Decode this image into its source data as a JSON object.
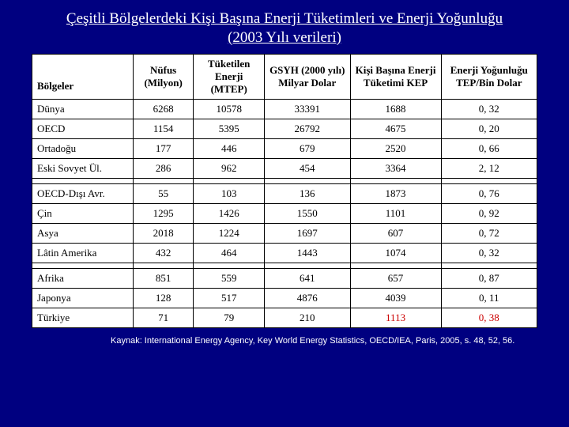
{
  "title_line1": "Çeşitli Bölgelerdeki Kişi Başına Enerji Tüketimleri ve Enerji Yoğunluğu",
  "title_line2": "(2003 Yılı verileri)",
  "header": {
    "regions": "Bölgeler",
    "col1": "Nüfus (Milyon)",
    "col2": "Tüketilen Enerji (MTEP)",
    "col3": "GSYH (2000 yılı) Milyar Dolar",
    "col4": "Kişi Başına Enerji Tüketimi KEP",
    "col5": "Enerji Yoğunluğu TEP/Bin Dolar"
  },
  "sections": [
    [
      {
        "name": "Dünya",
        "c1": "6268",
        "c2": "10578",
        "c3": "33391",
        "c4": "1688",
        "c5": "0, 32"
      },
      {
        "name": "OECD",
        "c1": "1154",
        "c2": "5395",
        "c3": "26792",
        "c4": "4675",
        "c5": "0, 20"
      },
      {
        "name": "Ortadoğu",
        "c1": "177",
        "c2": "446",
        "c3": "679",
        "c4": "2520",
        "c5": "0, 66"
      },
      {
        "name": "Eski Sovyet Ül.",
        "c1": "286",
        "c2": "962",
        "c3": "454",
        "c4": "3364",
        "c5": "2, 12"
      }
    ],
    [
      {
        "name": "OECD-Dışı Avr.",
        "c1": "55",
        "c2": "103",
        "c3": "136",
        "c4": "1873",
        "c5": "0, 76"
      },
      {
        "name": "Çin",
        "c1": "1295",
        "c2": "1426",
        "c3": "1550",
        "c4": "1101",
        "c5": "0, 92"
      },
      {
        "name": "Asya",
        "c1": "2018",
        "c2": "1224",
        "c3": "1697",
        "c4": "607",
        "c5": "0, 72"
      },
      {
        "name": "Lâtin Amerika",
        "c1": "432",
        "c2": "464",
        "c3": "1443",
        "c4": "1074",
        "c5": "0, 32"
      }
    ],
    [
      {
        "name": "Afrika",
        "c1": "851",
        "c2": "559",
        "c3": "641",
        "c4": "657",
        "c5": "0, 87"
      },
      {
        "name": "Japonya",
        "c1": "128",
        "c2": "517",
        "c3": "4876",
        "c4": "4039",
        "c5": "0, 11"
      },
      {
        "name": "Türkiye",
        "c1": "71",
        "c2": "79",
        "c3": "210",
        "c4": "1113",
        "c5": "0, 38",
        "hl": [
          "c4",
          "c5"
        ]
      }
    ]
  ],
  "source": "Kaynak: International Energy Agency, Key World Energy Statistics, OECD/IEA, Paris, 2005, s. 48, 52, 56.",
  "colwidths": [
    "20%",
    "12%",
    "14%",
    "17%",
    "18%",
    "19%"
  ],
  "colors": {
    "background": "#000080",
    "table_bg": "#ffffff",
    "border": "#000000",
    "text": "#000000",
    "title_text": "#ffffff",
    "highlight": "#cc0000"
  }
}
